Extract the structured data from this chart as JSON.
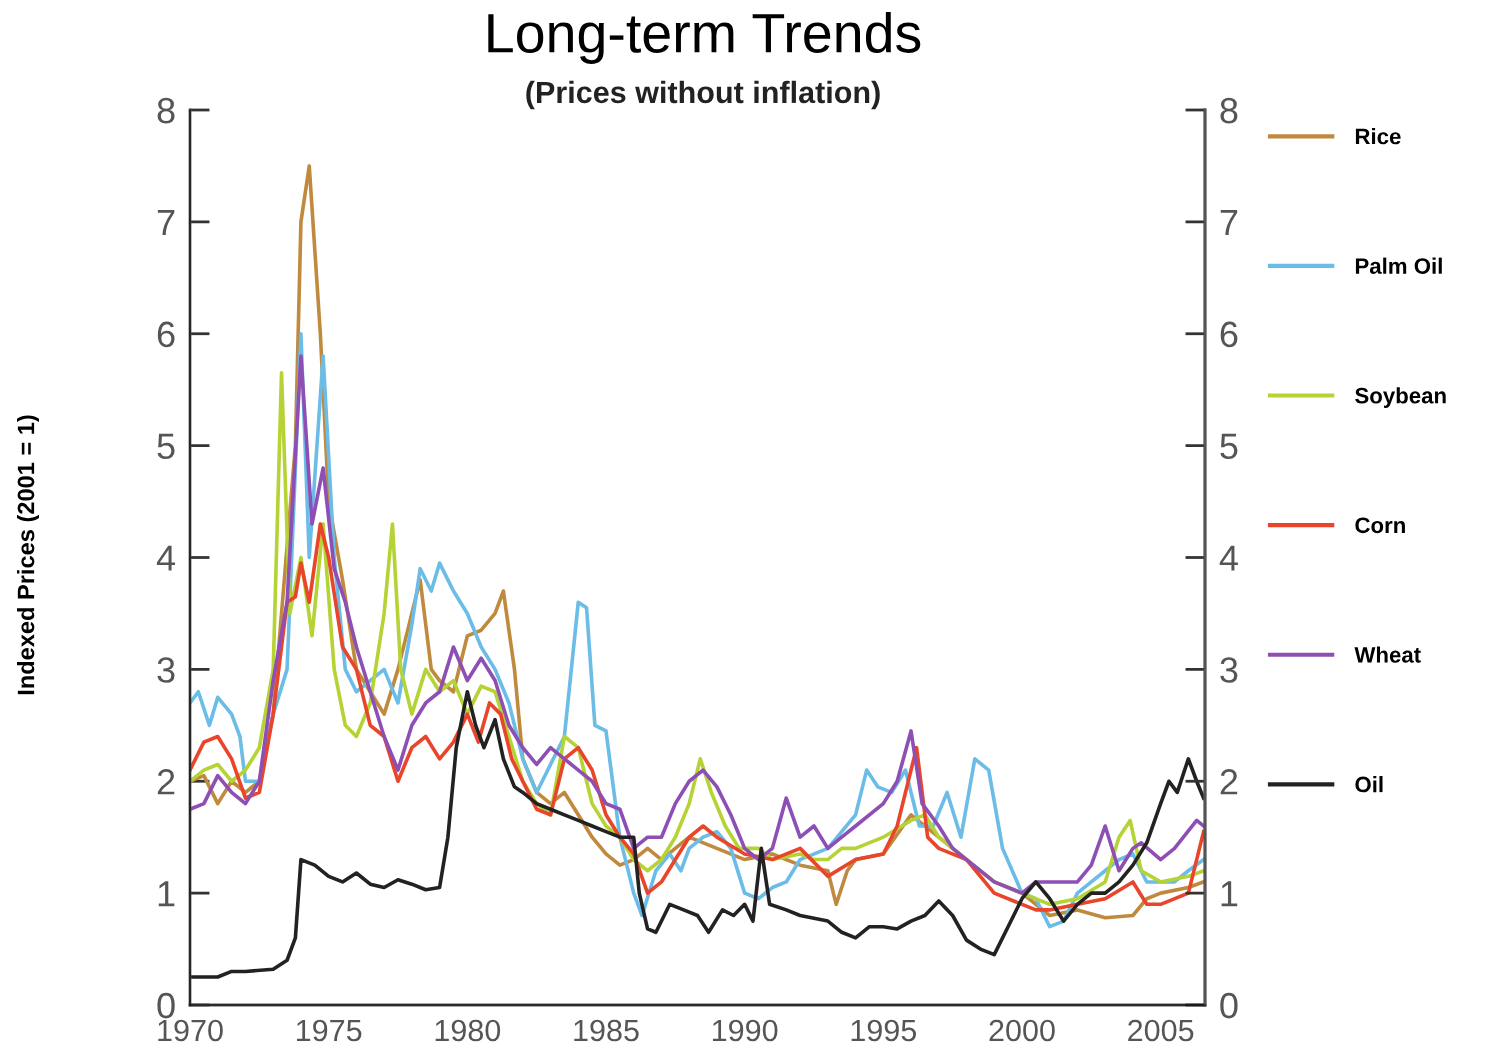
{
  "chart_data": {
    "type": "line",
    "title": "Long-term Trends",
    "subtitle": "(Prices without inflation)",
    "ylabel": "Indexed Prices (2001 = 1)",
    "xlim": [
      1970,
      2006.6
    ],
    "xticks": [
      1970,
      1975,
      1980,
      1985,
      1990,
      1995,
      2000,
      2005
    ],
    "ylim": [
      0,
      8
    ],
    "yticks": [
      0,
      1,
      2,
      3,
      4,
      5,
      6,
      7,
      8
    ],
    "y2lim": [
      0,
      8
    ],
    "y2ticks": [
      0,
      1,
      2,
      3,
      4,
      5,
      6,
      7,
      8
    ],
    "grid": false,
    "legend": "right",
    "line_style": "solid",
    "marker": "none",
    "series": [
      {
        "name": "Rice",
        "color": "#c08a3e",
        "x": [
          1970,
          1970.5,
          1971,
          1971.5,
          1972,
          1972.5,
          1973,
          1973.8,
          1974,
          1974.3,
          1974.7,
          1975,
          1975.5,
          1976,
          1976.5,
          1977,
          1977.5,
          1978,
          1978.3,
          1978.7,
          1979,
          1979.5,
          1980,
          1980.5,
          1981,
          1981.3,
          1981.7,
          1982,
          1982.5,
          1983,
          1983.5,
          1984,
          1984.5,
          1985,
          1985.5,
          1986,
          1986.5,
          1987,
          1988,
          1989,
          1990,
          1991,
          1992,
          1993,
          1993.3,
          1993.7,
          1994,
          1995,
          1996,
          1997,
          1997.5,
          1998,
          1999,
          2000,
          2001,
          2002,
          2003,
          2004,
          2004.5,
          2005,
          2006,
          2006.55
        ],
        "values": [
          2.0,
          2.05,
          1.8,
          2.0,
          1.9,
          2.0,
          2.6,
          5.0,
          7.0,
          7.5,
          6.0,
          4.5,
          3.8,
          3.0,
          2.8,
          2.6,
          3.0,
          3.5,
          3.8,
          3.0,
          2.9,
          2.8,
          3.3,
          3.35,
          3.5,
          3.7,
          3.0,
          2.2,
          1.9,
          1.8,
          1.9,
          1.7,
          1.5,
          1.35,
          1.25,
          1.3,
          1.4,
          1.3,
          1.5,
          1.4,
          1.3,
          1.35,
          1.25,
          1.2,
          0.9,
          1.2,
          1.3,
          1.35,
          1.7,
          1.5,
          1.4,
          1.3,
          1.1,
          1.0,
          0.8,
          0.85,
          0.78,
          0.8,
          0.95,
          1.0,
          1.05,
          1.1
        ]
      },
      {
        "name": "Palm Oil",
        "color": "#6bbce6",
        "x": [
          1970,
          1970.3,
          1970.7,
          1971,
          1971.5,
          1971.8,
          1972,
          1972.5,
          1973,
          1973.5,
          1974,
          1974.3,
          1974.8,
          1975.2,
          1975.6,
          1976,
          1976.5,
          1977,
          1977.5,
          1978,
          1978.3,
          1978.7,
          1979,
          1979.5,
          1980,
          1980.5,
          1981,
          1981.5,
          1982,
          1982.5,
          1983.5,
          1984,
          1984.3,
          1984.6,
          1985,
          1985.5,
          1986,
          1986.3,
          1986.8,
          1987.3,
          1987.7,
          1988,
          1988.5,
          1989,
          1989.5,
          1990,
          1990.5,
          1991,
          1991.5,
          1992,
          1993,
          1994,
          1994.4,
          1994.8,
          1995.3,
          1995.8,
          1996.3,
          1996.8,
          1997.3,
          1997.8,
          1998.3,
          1998.8,
          1999.3,
          2000,
          2000.5,
          2001,
          2001.5,
          2002,
          2002.5,
          2003,
          2003.5,
          2004,
          2004.5,
          2005,
          2005.5,
          2006,
          2006.55
        ],
        "values": [
          2.7,
          2.8,
          2.5,
          2.75,
          2.6,
          2.4,
          2.0,
          2.0,
          2.6,
          3.0,
          6.0,
          4.0,
          5.8,
          4.0,
          3.0,
          2.8,
          2.9,
          3.0,
          2.7,
          3.4,
          3.9,
          3.7,
          3.95,
          3.7,
          3.5,
          3.2,
          3.0,
          2.7,
          2.2,
          1.9,
          2.4,
          3.6,
          3.55,
          2.5,
          2.45,
          1.5,
          1.0,
          0.8,
          1.2,
          1.35,
          1.2,
          1.4,
          1.5,
          1.55,
          1.4,
          1.0,
          0.95,
          1.05,
          1.1,
          1.3,
          1.4,
          1.7,
          2.1,
          1.95,
          1.9,
          2.1,
          1.6,
          1.6,
          1.9,
          1.5,
          2.2,
          2.1,
          1.4,
          1.0,
          0.95,
          0.7,
          0.75,
          1.0,
          1.1,
          1.2,
          1.3,
          1.35,
          1.1,
          1.1,
          1.1,
          1.2,
          1.3
        ]
      },
      {
        "name": "Soybean",
        "color": "#b5d334",
        "x": [
          1970,
          1970.5,
          1971,
          1971.5,
          1972,
          1972.5,
          1973,
          1973.3,
          1973.6,
          1974,
          1974.4,
          1974.8,
          1975.2,
          1975.6,
          1976,
          1976.5,
          1977,
          1977.3,
          1977.6,
          1978,
          1978.5,
          1979,
          1979.5,
          1980,
          1980.5,
          1981,
          1981.5,
          1982,
          1982.5,
          1983,
          1983.5,
          1984,
          1984.5,
          1985,
          1985.5,
          1986,
          1986.5,
          1987,
          1987.5,
          1988,
          1988.4,
          1988.8,
          1989.3,
          1989.8,
          1990.5,
          1991,
          1992,
          1992.5,
          1993,
          1993.5,
          1994,
          1995,
          1996,
          1996.5,
          1997,
          1998,
          1999,
          2000,
          2001,
          2002,
          2003,
          2003.5,
          2003.9,
          2004.3,
          2005,
          2006,
          2006.55
        ],
        "values": [
          2.0,
          2.1,
          2.15,
          2.0,
          2.1,
          2.3,
          3.0,
          5.65,
          3.5,
          4.0,
          3.3,
          4.3,
          3.0,
          2.5,
          2.4,
          2.7,
          3.5,
          4.3,
          3.0,
          2.6,
          3.0,
          2.8,
          2.9,
          2.6,
          2.85,
          2.8,
          2.4,
          2.0,
          1.8,
          1.7,
          2.4,
          2.3,
          1.8,
          1.6,
          1.5,
          1.3,
          1.2,
          1.3,
          1.5,
          1.8,
          2.2,
          1.9,
          1.6,
          1.4,
          1.4,
          1.3,
          1.35,
          1.3,
          1.3,
          1.4,
          1.4,
          1.5,
          1.65,
          1.7,
          1.5,
          1.3,
          1.1,
          1.0,
          0.9,
          0.95,
          1.1,
          1.5,
          1.65,
          1.2,
          1.1,
          1.15,
          1.2
        ]
      },
      {
        "name": "Corn",
        "color": "#e8452b",
        "x": [
          1970,
          1970.5,
          1971,
          1971.5,
          1972,
          1972.5,
          1973,
          1973.5,
          1973.8,
          1974,
          1974.3,
          1974.7,
          1975,
          1975.5,
          1976,
          1976.5,
          1977,
          1977.5,
          1978,
          1978.5,
          1979,
          1979.5,
          1980,
          1980.4,
          1980.8,
          1981.2,
          1981.6,
          1982,
          1982.5,
          1983,
          1983.5,
          1984,
          1984.5,
          1985,
          1985.5,
          1986,
          1986.5,
          1987,
          1987.5,
          1988,
          1988.5,
          1989,
          1990,
          1991,
          1992,
          1993,
          1994,
          1995,
          1995.5,
          1996.2,
          1996.6,
          1997,
          1998,
          1999,
          2000,
          2000.5,
          2001,
          2002,
          2003,
          2004,
          2004.5,
          2005,
          2006,
          2006.55
        ],
        "values": [
          2.1,
          2.35,
          2.4,
          2.2,
          1.85,
          1.9,
          2.6,
          3.6,
          3.65,
          3.95,
          3.6,
          4.3,
          4.0,
          3.2,
          3.0,
          2.5,
          2.4,
          2.0,
          2.3,
          2.4,
          2.2,
          2.35,
          2.6,
          2.35,
          2.7,
          2.6,
          2.2,
          2.0,
          1.75,
          1.7,
          2.2,
          2.3,
          2.1,
          1.7,
          1.5,
          1.35,
          1.0,
          1.1,
          1.3,
          1.5,
          1.6,
          1.5,
          1.35,
          1.3,
          1.4,
          1.15,
          1.3,
          1.35,
          1.6,
          2.3,
          1.5,
          1.4,
          1.3,
          1.0,
          0.9,
          0.85,
          0.85,
          0.9,
          0.95,
          1.1,
          0.9,
          0.9,
          1.0,
          1.55
        ]
      },
      {
        "name": "Wheat",
        "color": "#8e4fb5",
        "x": [
          1970,
          1970.5,
          1971,
          1971.5,
          1972,
          1972.5,
          1973,
          1973.5,
          1974,
          1974.4,
          1974.8,
          1975.2,
          1975.6,
          1976,
          1976.5,
          1977,
          1977.5,
          1978,
          1978.5,
          1979,
          1979.5,
          1980,
          1980.5,
          1981,
          1981.5,
          1982,
          1982.5,
          1983,
          1983.5,
          1984,
          1984.5,
          1985,
          1985.5,
          1986,
          1986.5,
          1987,
          1987.5,
          1988,
          1988.5,
          1989,
          1989.5,
          1990,
          1990.5,
          1991,
          1991.5,
          1992,
          1992.5,
          1993,
          1993.5,
          1994,
          1995,
          1995.5,
          1996,
          1996.4,
          1997,
          1997.5,
          1998,
          1999,
          2000,
          2000.5,
          2001,
          2001.5,
          2002,
          2002.5,
          2003,
          2003.5,
          2004,
          2004.3,
          2005,
          2005.5,
          2006.3,
          2006.55
        ],
        "values": [
          1.75,
          1.8,
          2.05,
          1.9,
          1.8,
          2.0,
          2.9,
          3.6,
          5.8,
          4.3,
          4.8,
          3.9,
          3.6,
          3.2,
          2.8,
          2.4,
          2.1,
          2.5,
          2.7,
          2.8,
          3.2,
          2.9,
          3.1,
          2.9,
          2.5,
          2.3,
          2.15,
          2.3,
          2.2,
          2.1,
          2.0,
          1.8,
          1.75,
          1.4,
          1.5,
          1.5,
          1.8,
          2.0,
          2.1,
          1.95,
          1.7,
          1.4,
          1.3,
          1.4,
          1.85,
          1.5,
          1.6,
          1.4,
          1.5,
          1.6,
          1.8,
          2.0,
          2.45,
          1.8,
          1.6,
          1.4,
          1.3,
          1.1,
          1.0,
          1.1,
          1.1,
          1.1,
          1.1,
          1.25,
          1.6,
          1.2,
          1.4,
          1.45,
          1.3,
          1.4,
          1.65,
          1.6
        ]
      },
      {
        "name": "Oil",
        "color": "#222222",
        "x": [
          1970,
          1971,
          1971.5,
          1972,
          1973,
          1973.5,
          1973.8,
          1974,
          1974.5,
          1975,
          1975.5,
          1976,
          1976.5,
          1977,
          1977.5,
          1978,
          1978.5,
          1979,
          1979.3,
          1979.6,
          1980,
          1980.3,
          1980.6,
          1981,
          1981.3,
          1981.7,
          1982,
          1982.5,
          1983,
          1983.5,
          1984,
          1984.5,
          1985,
          1985.5,
          1986,
          1986.2,
          1986.5,
          1986.8,
          1987.3,
          1987.8,
          1988.3,
          1988.7,
          1989.2,
          1989.6,
          1990,
          1990.3,
          1990.6,
          1990.9,
          1991.5,
          1992,
          1993,
          1993.5,
          1994,
          1994.5,
          1995,
          1995.5,
          1996,
          1996.5,
          1997,
          1997.5,
          1998,
          1998.5,
          1999,
          1999.5,
          2000,
          2000.5,
          2001,
          2001.5,
          2002,
          2002.5,
          2003,
          2003.5,
          2004,
          2004.5,
          2005,
          2005.3,
          2005.6,
          2006,
          2006.3,
          2006.55
        ],
        "values": [
          0.25,
          0.25,
          0.3,
          0.3,
          0.32,
          0.4,
          0.6,
          1.3,
          1.25,
          1.15,
          1.1,
          1.18,
          1.08,
          1.05,
          1.12,
          1.08,
          1.03,
          1.05,
          1.5,
          2.3,
          2.8,
          2.5,
          2.3,
          2.55,
          2.2,
          1.95,
          1.9,
          1.8,
          1.75,
          1.7,
          1.65,
          1.6,
          1.55,
          1.5,
          1.5,
          1.0,
          0.68,
          0.65,
          0.9,
          0.85,
          0.8,
          0.65,
          0.85,
          0.8,
          0.9,
          0.75,
          1.4,
          0.9,
          0.85,
          0.8,
          0.75,
          0.65,
          0.6,
          0.7,
          0.7,
          0.68,
          0.75,
          0.8,
          0.93,
          0.8,
          0.58,
          0.5,
          0.45,
          0.7,
          0.95,
          1.1,
          0.95,
          0.75,
          0.9,
          1.0,
          1.0,
          1.1,
          1.25,
          1.45,
          1.8,
          2.0,
          1.9,
          2.2,
          2.0,
          1.85
        ]
      }
    ]
  }
}
